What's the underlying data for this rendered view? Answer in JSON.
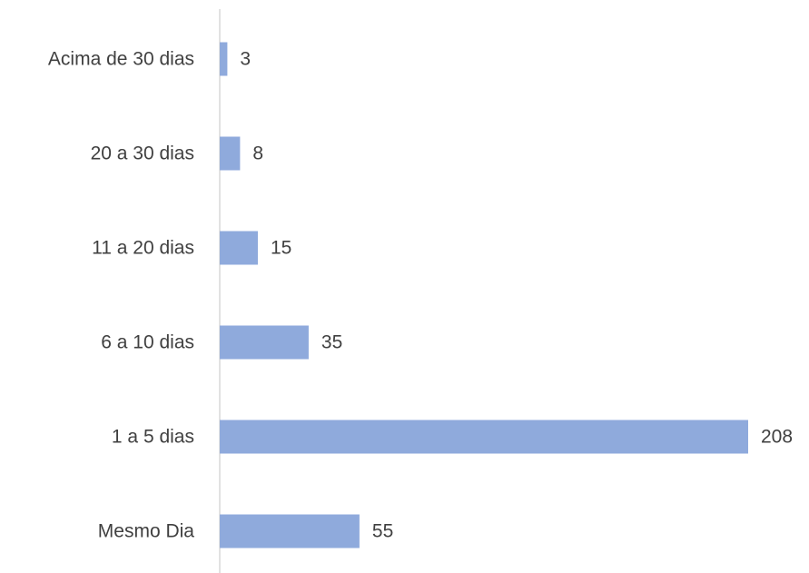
{
  "chart_data": {
    "type": "bar",
    "orientation": "horizontal",
    "categories": [
      "Acima de 30 dias",
      "20 a 30 dias",
      "11 a 20 dias",
      "6 a 10 dias",
      "1 a 5 dias",
      "Mesmo Dia"
    ],
    "values": [
      3,
      8,
      15,
      35,
      208,
      55
    ],
    "color": "#8faadc"
  }
}
